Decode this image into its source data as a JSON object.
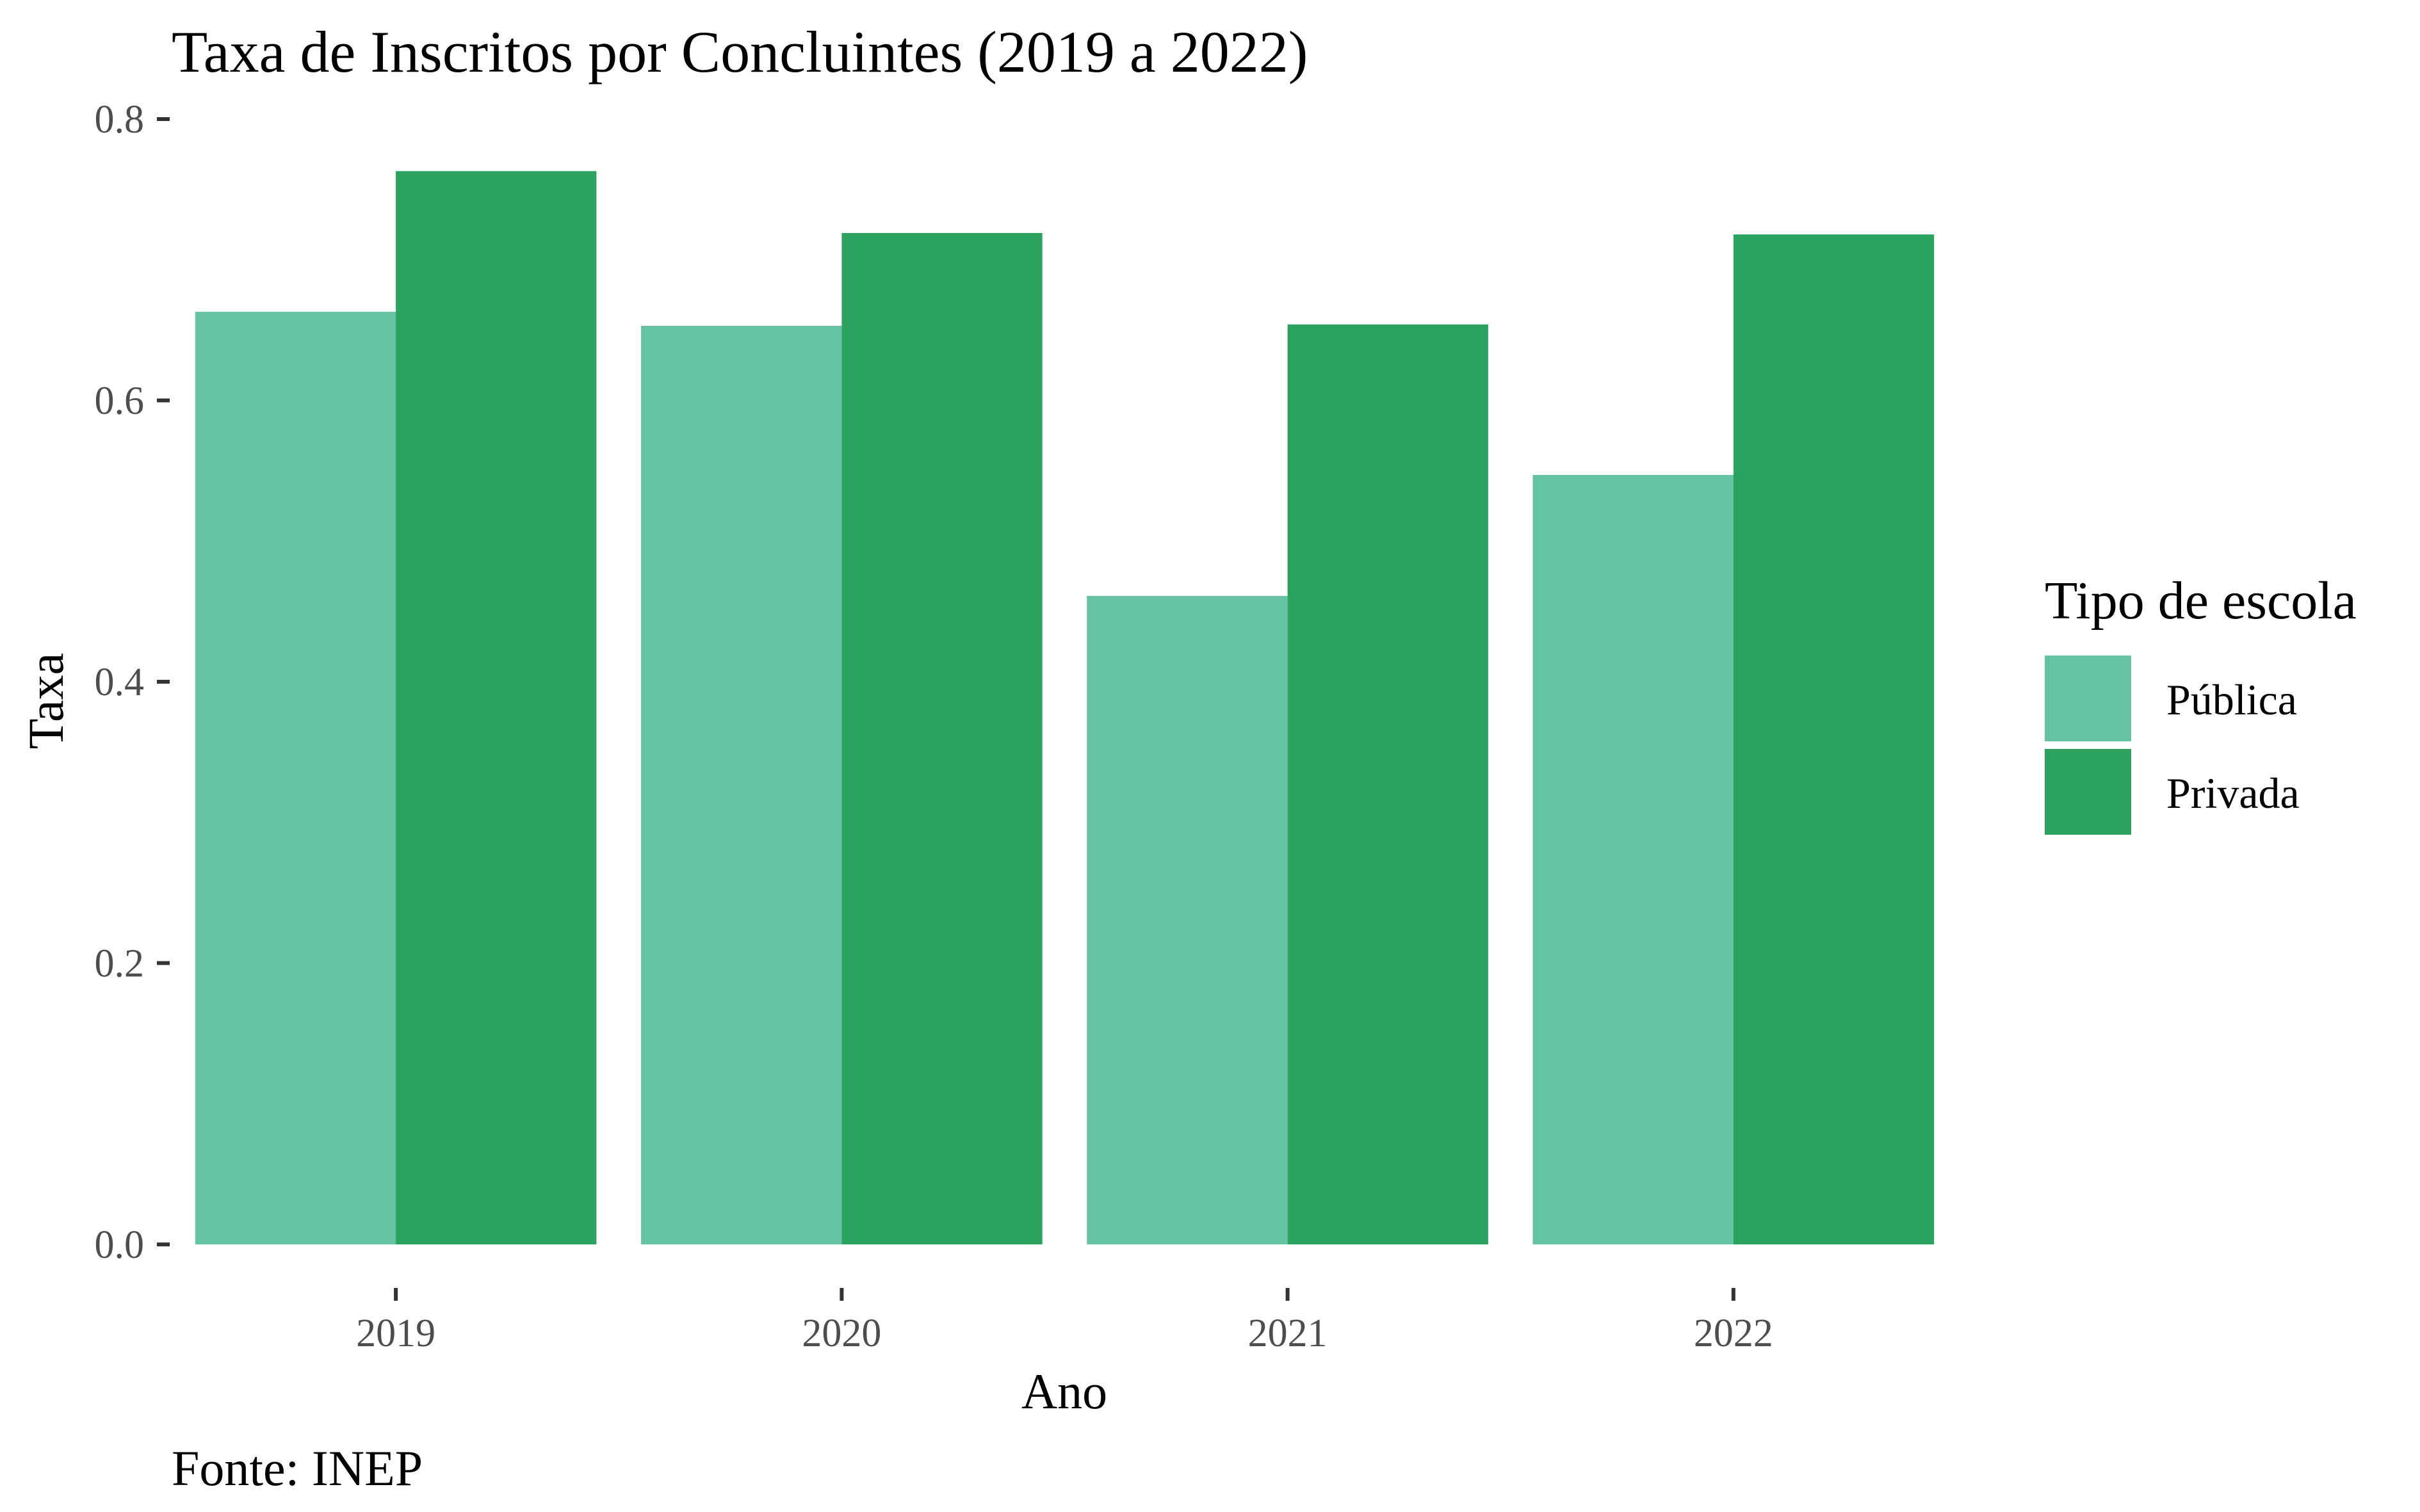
{
  "chart_data": {
    "type": "bar",
    "title": "Taxa de Inscritos por Concluintes (2019 a 2022)",
    "xlabel": "Ano",
    "ylabel": "Taxa",
    "caption": "Fonte: INEP",
    "categories": [
      "2019",
      "2020",
      "2021",
      "2022"
    ],
    "series": [
      {
        "name": "Pública",
        "color": "#66c2a5",
        "values": [
          0.663,
          0.653,
          0.461,
          0.547
        ]
      },
      {
        "name": "Privada",
        "color": "#2ca25f",
        "values": [
          0.763,
          0.719,
          0.654,
          0.718
        ]
      }
    ],
    "ylim": [
      0,
      0.8
    ],
    "yticks": [
      "0.0",
      "0.2",
      "0.4",
      "0.6",
      "0.8"
    ],
    "grid": false,
    "legend": {
      "title": "Tipo de escola",
      "placement": "right"
    }
  }
}
